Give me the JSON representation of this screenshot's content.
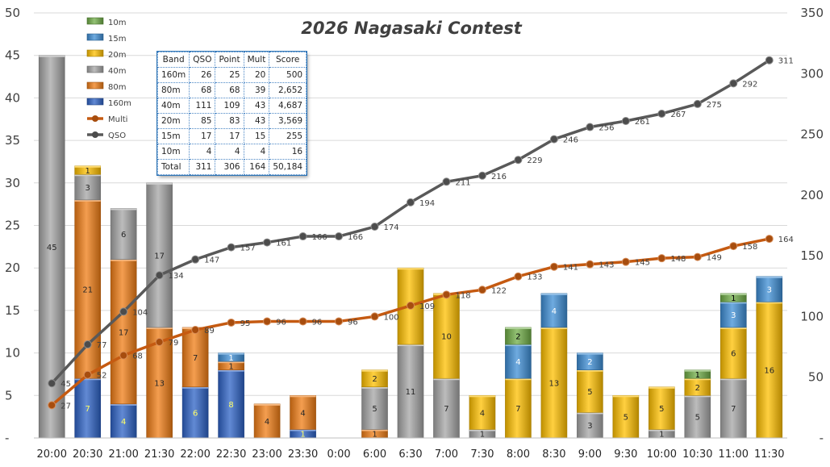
{
  "chart_data": {
    "type": "bar",
    "title": "2026 Nagasaki Contest",
    "categories": [
      "20:00",
      "20:30",
      "21:00",
      "21:30",
      "22:00",
      "22:30",
      "23:00",
      "23:30",
      "0:00",
      "6:00",
      "6:30",
      "7:00",
      "7:30",
      "8:00",
      "8:30",
      "9:00",
      "9:30",
      "10:00",
      "10:30",
      "11:00",
      "11:30"
    ],
    "left_axis": {
      "ylim": [
        0,
        50
      ],
      "ticks": [
        "-",
        "5",
        "10",
        "15",
        "20",
        "25",
        "30",
        "35",
        "40",
        "45",
        "50"
      ]
    },
    "right_axis": {
      "ylim": [
        0,
        350
      ],
      "ticks": [
        "-",
        "50",
        "100",
        "150",
        "200",
        "250",
        "300",
        "350"
      ]
    },
    "stack_order": [
      "160m",
      "80m",
      "40m",
      "20m",
      "15m",
      "10m"
    ],
    "series": [
      {
        "name": "160m",
        "color": "#2e63c6",
        "values": [
          0,
          7,
          4,
          0,
          6,
          8,
          0,
          1,
          0,
          0,
          0,
          0,
          0,
          0,
          0,
          0,
          0,
          0,
          0,
          0,
          0
        ]
      },
      {
        "name": "80m",
        "color": "#f07d16",
        "values": [
          0,
          21,
          17,
          13,
          7,
          1,
          4,
          4,
          0,
          1,
          0,
          0,
          0,
          0,
          0,
          0,
          0,
          0,
          0,
          0,
          0
        ]
      },
      {
        "name": "40m",
        "color": "#a6a6a6",
        "values": [
          45,
          3,
          6,
          17,
          0,
          0,
          0,
          0,
          0,
          5,
          11,
          7,
          1,
          0,
          0,
          3,
          0,
          1,
          5,
          7,
          0
        ]
      },
      {
        "name": "20m",
        "color": "#ffc000",
        "values": [
          0,
          1,
          0,
          0,
          0,
          0,
          0,
          0,
          0,
          2,
          9,
          10,
          4,
          7,
          13,
          5,
          5,
          5,
          2,
          6,
          16
        ]
      },
      {
        "name": "15m",
        "color": "#3f8fd6",
        "values": [
          0,
          0,
          0,
          0,
          0,
          1,
          0,
          0,
          0,
          0,
          0,
          0,
          0,
          4,
          4,
          2,
          0,
          0,
          0,
          3,
          3
        ]
      },
      {
        "name": "10m",
        "color": "#70ad47",
        "values": [
          0,
          0,
          0,
          0,
          0,
          0,
          0,
          0,
          0,
          0,
          0,
          0,
          0,
          2,
          0,
          0,
          0,
          0,
          1,
          1,
          0
        ]
      }
    ],
    "lines": [
      {
        "name": "Multi",
        "color": "#c55a11",
        "axis": "right",
        "values": [
          27,
          52,
          68,
          79,
          89,
          95,
          96,
          96,
          96,
          100,
          109,
          118,
          122,
          133,
          141,
          143,
          145,
          148,
          149,
          158,
          164
        ]
      },
      {
        "name": "QSO",
        "color": "#595959",
        "axis": "right",
        "values": [
          45,
          77,
          104,
          134,
          147,
          157,
          161,
          166,
          166,
          174,
          194,
          211,
          216,
          229,
          246,
          256,
          261,
          267,
          275,
          292,
          311
        ]
      }
    ],
    "legend": [
      "10m",
      "15m",
      "20m",
      "40m",
      "80m",
      "160m",
      "Multi",
      "QSO"
    ],
    "legend_placement": "top-left",
    "grid": true
  },
  "score_table": {
    "headers": [
      "Band",
      "QSO",
      "Point",
      "Mult",
      "Score"
    ],
    "rows": [
      [
        "160m",
        "26",
        "25",
        "20",
        "500"
      ],
      [
        "80m",
        "68",
        "68",
        "39",
        "2,652"
      ],
      [
        "40m",
        "111",
        "109",
        "43",
        "4,687"
      ],
      [
        "20m",
        "85",
        "83",
        "43",
        "3,569"
      ],
      [
        "15m",
        "17",
        "17",
        "15",
        "255"
      ],
      [
        "10m",
        "4",
        "4",
        "4",
        "16"
      ],
      [
        "Total",
        "311",
        "306",
        "164",
        "50,184"
      ]
    ]
  }
}
